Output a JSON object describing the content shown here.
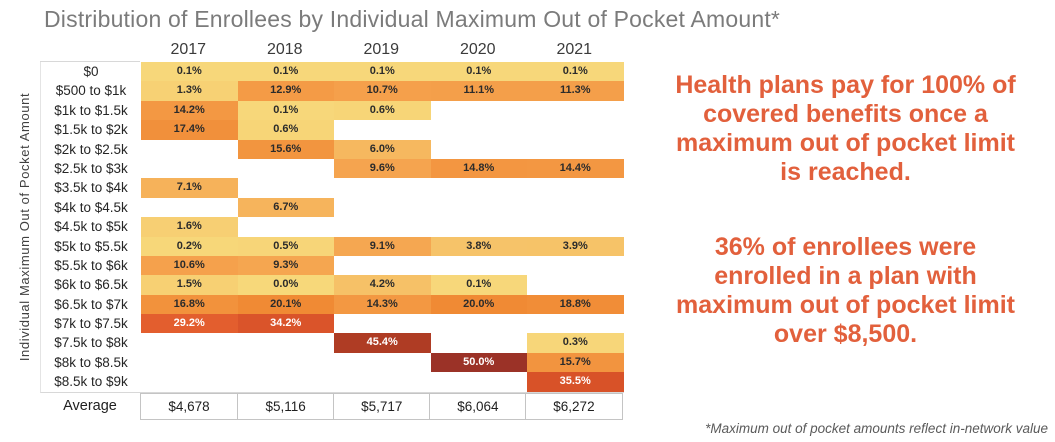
{
  "title": "Distribution of Enrollees by Individual Maximum Out of Pocket Amount*",
  "colors": {
    "title_text": "#7B7B7B",
    "accent_text": "#E2603C",
    "header_text": "#3B3B3B",
    "row_label_text": "#262626",
    "cell_text_dark": "#2B2B2B",
    "cell_text_light": "#FFFFFF",
    "grid_line": "#D8D8D8",
    "average_border": "#C4C4C4",
    "footnote_text": "#5A5A5A",
    "heat_scale": [
      {
        "v": 0,
        "c": "#F7D87A"
      },
      {
        "v": 10,
        "c": "#F5A24D"
      },
      {
        "v": 20,
        "c": "#F08A34"
      },
      {
        "v": 30,
        "c": "#E25A2D"
      },
      {
        "v": 36,
        "c": "#D75128"
      },
      {
        "v": 46,
        "c": "#AC3B24"
      },
      {
        "v": 50,
        "c": "#9B3227"
      }
    ],
    "white_text_threshold": 25
  },
  "chart_data": {
    "type": "heatmap",
    "title": "Distribution of Enrollees by Individual Maximum Out of Pocket Amount*",
    "ylabel": "Individual Maximum Out of Pocket Amount",
    "unit": "%",
    "years": [
      "2017",
      "2018",
      "2019",
      "2020",
      "2021"
    ],
    "rows": [
      {
        "label": "$0",
        "values": [
          0.1,
          0.1,
          0.1,
          0.1,
          0.1
        ]
      },
      {
        "label": "$500 to $1k",
        "values": [
          1.3,
          12.9,
          10.7,
          11.1,
          11.3
        ]
      },
      {
        "label": "$1k to $1.5k",
        "values": [
          14.2,
          0.1,
          0.6,
          null,
          null
        ]
      },
      {
        "label": "$1.5k to $2k",
        "values": [
          17.4,
          0.6,
          null,
          null,
          null
        ]
      },
      {
        "label": "$2k to $2.5k",
        "values": [
          null,
          15.6,
          6.0,
          null,
          null
        ]
      },
      {
        "label": "$2.5k to $3k",
        "values": [
          null,
          null,
          9.6,
          14.8,
          14.4
        ]
      },
      {
        "label": "$3.5k to $4k",
        "values": [
          7.1,
          null,
          null,
          null,
          null
        ]
      },
      {
        "label": "$4k to $4.5k",
        "values": [
          null,
          6.7,
          null,
          null,
          null
        ]
      },
      {
        "label": "$4.5k to $5k",
        "values": [
          1.6,
          null,
          null,
          null,
          null
        ]
      },
      {
        "label": "$5k to $5.5k",
        "values": [
          0.2,
          0.5,
          9.1,
          3.8,
          3.9
        ]
      },
      {
        "label": "$5.5k to $6k",
        "values": [
          10.6,
          9.3,
          null,
          null,
          null
        ]
      },
      {
        "label": "$6k to $6.5k",
        "values": [
          1.5,
          0.0,
          4.2,
          0.1,
          null
        ]
      },
      {
        "label": "$6.5k to $7k",
        "values": [
          16.8,
          20.1,
          14.3,
          20.0,
          18.8
        ]
      },
      {
        "label": "$7k to $7.5k",
        "values": [
          29.2,
          34.2,
          null,
          null,
          null
        ]
      },
      {
        "label": "$7.5k to $8k",
        "values": [
          null,
          null,
          45.4,
          null,
          0.3
        ]
      },
      {
        "label": "$8k to $8.5k",
        "values": [
          null,
          null,
          null,
          50.0,
          15.7
        ]
      },
      {
        "label": "$8.5k to $9k",
        "values": [
          null,
          null,
          null,
          null,
          35.5
        ]
      }
    ],
    "average_row": {
      "label": "Average",
      "values": [
        "$4,678",
        "$5,116",
        "$5,717",
        "$6,064",
        "$6,272"
      ]
    }
  },
  "annotations": {
    "callout_1": "Health plans pay for 100% of\ncovered benefits once a\nmaximum out of pocket limit\nis reached.",
    "callout_2": "36% of enrollees were\nenrolled in a plan with\nmaximum out of pocket limit\nover $8,500.",
    "footnote": "*Maximum out of pocket amounts reflect in-network value"
  }
}
